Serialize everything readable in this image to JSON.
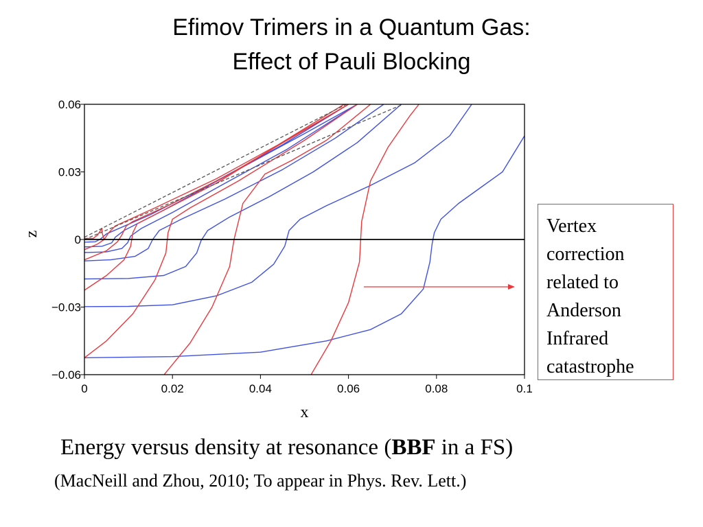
{
  "slide": {
    "title_line1": "Efimov Trimers in a Quantum Gas:",
    "title_line2": "Effect of Pauli Blocking",
    "callout_lines": [
      "Vertex",
      "correction",
      "related to",
      "Anderson",
      "Infrared",
      "catastrophe"
    ],
    "caption_pre": "Energy versus density at resonance (",
    "caption_bold": "BBF",
    "caption_post": " in a FS)",
    "citation": "(MacNeill and Zhou, 2010;  To appear in Phys. Rev. Lett.)"
  },
  "colors": {
    "red": "#e8393d",
    "blue": "#3f51e0",
    "black": "#000000",
    "dashed": "#555555"
  },
  "chart_data": {
    "type": "line",
    "xlabel": "x",
    "ylabel": "z",
    "xlim": [
      0,
      0.1
    ],
    "ylim": [
      -0.06,
      0.06
    ],
    "xticks": [
      0,
      0.02,
      0.04,
      0.06,
      0.08,
      0.1
    ],
    "xtick_labels": [
      "0",
      "0.02",
      "0.04",
      "0.06",
      "0.08",
      "0.1"
    ],
    "yticks": [
      -0.06,
      -0.03,
      0,
      0.03,
      0.06
    ],
    "ytick_labels": [
      "−0.06",
      "−0.03",
      "0",
      "0.03",
      "0.06"
    ],
    "zero_line": true,
    "series": [
      {
        "color": "blue",
        "style": "solid",
        "points": [
          [
            0,
            -0.0525
          ],
          [
            0.02,
            -0.052
          ],
          [
            0.04,
            -0.05
          ],
          [
            0.055,
            -0.045
          ],
          [
            0.065,
            -0.04
          ],
          [
            0.072,
            -0.033
          ],
          [
            0.077,
            -0.022
          ],
          [
            0.0785,
            -0.01
          ],
          [
            0.079,
            -0.002
          ],
          [
            0.0795,
            0.003
          ],
          [
            0.081,
            0.009
          ],
          [
            0.085,
            0.016
          ],
          [
            0.09,
            0.023
          ],
          [
            0.095,
            0.03
          ],
          [
            0.1,
            0.046
          ]
        ]
      },
      {
        "color": "blue",
        "style": "solid",
        "points": [
          [
            0,
            -0.0298
          ],
          [
            0.01,
            -0.0297
          ],
          [
            0.02,
            -0.029
          ],
          [
            0.03,
            -0.025
          ],
          [
            0.038,
            -0.019
          ],
          [
            0.043,
            -0.011
          ],
          [
            0.0455,
            -0.003
          ],
          [
            0.0465,
            0.004
          ],
          [
            0.049,
            0.009
          ],
          [
            0.055,
            0.015
          ],
          [
            0.065,
            0.024
          ],
          [
            0.075,
            0.034
          ],
          [
            0.083,
            0.046
          ],
          [
            0.088,
            0.06
          ]
        ]
      },
      {
        "color": "blue",
        "style": "solid",
        "points": [
          [
            0,
            -0.0175
          ],
          [
            0.01,
            -0.0173
          ],
          [
            0.018,
            -0.016
          ],
          [
            0.023,
            -0.012
          ],
          [
            0.0255,
            -0.006
          ],
          [
            0.0265,
            -0.0005
          ],
          [
            0.028,
            0.004
          ],
          [
            0.033,
            0.01
          ],
          [
            0.042,
            0.019
          ],
          [
            0.052,
            0.03
          ],
          [
            0.062,
            0.043
          ],
          [
            0.072,
            0.06
          ]
        ]
      },
      {
        "color": "blue",
        "style": "solid",
        "points": [
          [
            0,
            -0.0095
          ],
          [
            0.006,
            -0.009
          ],
          [
            0.0115,
            -0.0075
          ],
          [
            0.0145,
            -0.004
          ],
          [
            0.0155,
            0.0
          ],
          [
            0.017,
            0.004
          ],
          [
            0.022,
            0.009
          ],
          [
            0.032,
            0.018
          ],
          [
            0.045,
            0.031
          ],
          [
            0.057,
            0.045
          ],
          [
            0.068,
            0.06
          ]
        ]
      },
      {
        "color": "blue",
        "style": "solid",
        "points": [
          [
            0,
            -0.0058
          ],
          [
            0.005,
            -0.0055
          ],
          [
            0.0085,
            -0.004
          ],
          [
            0.0098,
            -0.0015
          ],
          [
            0.0105,
            0.0015
          ],
          [
            0.013,
            0.005
          ],
          [
            0.02,
            0.012
          ],
          [
            0.032,
            0.025
          ],
          [
            0.046,
            0.04
          ],
          [
            0.062,
            0.06
          ]
        ]
      },
      {
        "color": "blue",
        "style": "solid",
        "points": [
          [
            0,
            -0.0033
          ],
          [
            0.004,
            -0.003
          ],
          [
            0.0062,
            -0.0015
          ],
          [
            0.007,
            0.001
          ],
          [
            0.009,
            0.004
          ],
          [
            0.018,
            0.013
          ],
          [
            0.033,
            0.029
          ],
          [
            0.05,
            0.047
          ],
          [
            0.062,
            0.06
          ]
        ]
      },
      {
        "color": "blue",
        "style": "solid",
        "points": [
          [
            0,
            -0.0012
          ],
          [
            0.0025,
            -0.001
          ],
          [
            0.0037,
            0.0003
          ],
          [
            0.005,
            0.0025
          ],
          [
            0.015,
            0.011
          ],
          [
            0.03,
            0.026
          ],
          [
            0.045,
            0.042
          ],
          [
            0.06,
            0.06
          ]
        ]
      },
      {
        "color": "red",
        "style": "solid",
        "points": [
          [
            0,
            0.0005
          ],
          [
            0.002,
            0.0005
          ],
          [
            0.003,
            0.002
          ],
          [
            0.004,
            0.005
          ],
          [
            0.004,
            0.003
          ],
          [
            0.0045,
            0.0
          ]
        ]
      },
      {
        "color": "red",
        "style": "solid",
        "points": [
          [
            0,
            -0.0045
          ],
          [
            0.003,
            -0.002
          ],
          [
            0.0045,
            0.0
          ],
          [
            0.0055,
            0.003
          ],
          [
            0.007,
            0.006
          ],
          [
            0.016,
            0.014
          ],
          [
            0.03,
            0.027
          ],
          [
            0.044,
            0.042
          ],
          [
            0.059,
            0.06
          ]
        ]
      },
      {
        "color": "red",
        "style": "solid",
        "points": [
          [
            0,
            -0.009
          ],
          [
            0.005,
            -0.005
          ],
          [
            0.0075,
            -0.001
          ],
          [
            0.0085,
            0.002
          ],
          [
            0.0095,
            0.006
          ],
          [
            0.011,
            0.008
          ],
          [
            0.02,
            0.016
          ],
          [
            0.033,
            0.029
          ],
          [
            0.046,
            0.044
          ],
          [
            0.06,
            0.06
          ]
        ]
      },
      {
        "color": "red",
        "style": "solid",
        "points": [
          [
            0,
            -0.0225
          ],
          [
            0.005,
            -0.016
          ],
          [
            0.009,
            -0.009
          ],
          [
            0.0105,
            -0.003
          ],
          [
            0.011,
            0.003
          ],
          [
            0.012,
            0.007
          ],
          [
            0.017,
            0.012
          ],
          [
            0.03,
            0.025
          ],
          [
            0.045,
            0.043
          ],
          [
            0.06,
            0.06
          ]
        ]
      },
      {
        "color": "red",
        "style": "solid",
        "points": [
          [
            0,
            -0.0525
          ],
          [
            0.005,
            -0.045
          ],
          [
            0.011,
            -0.033
          ],
          [
            0.016,
            -0.018
          ],
          [
            0.0185,
            -0.006
          ],
          [
            0.019,
            0.003
          ],
          [
            0.02,
            0.009
          ],
          [
            0.024,
            0.014
          ],
          [
            0.035,
            0.026
          ],
          [
            0.05,
            0.044
          ],
          [
            0.062,
            0.06
          ]
        ]
      },
      {
        "color": "red",
        "style": "solid",
        "points": [
          [
            0.016,
            -0.065
          ],
          [
            0.024,
            -0.046
          ],
          [
            0.029,
            -0.03
          ],
          [
            0.033,
            -0.012
          ],
          [
            0.034,
            0.0
          ],
          [
            0.036,
            0.016
          ],
          [
            0.041,
            0.029
          ],
          [
            0.047,
            0.035
          ],
          [
            0.055,
            0.044
          ],
          [
            0.065,
            0.06
          ]
        ]
      },
      {
        "color": "red",
        "style": "solid",
        "points": [
          [
            0.05,
            -0.065
          ],
          [
            0.056,
            -0.045
          ],
          [
            0.06,
            -0.028
          ],
          [
            0.0625,
            -0.01
          ],
          [
            0.063,
            0.008
          ],
          [
            0.065,
            0.026
          ],
          [
            0.069,
            0.041
          ],
          [
            0.074,
            0.055
          ],
          [
            0.076,
            0.06
          ]
        ]
      },
      {
        "color": "dashed",
        "style": "dashed",
        "points": [
          [
            0,
            0.001
          ],
          [
            0.06,
            0.0605
          ]
        ]
      },
      {
        "color": "dashed",
        "style": "dashed",
        "points": [
          [
            0,
            0.0
          ],
          [
            0.073,
            0.0605
          ]
        ]
      }
    ]
  }
}
